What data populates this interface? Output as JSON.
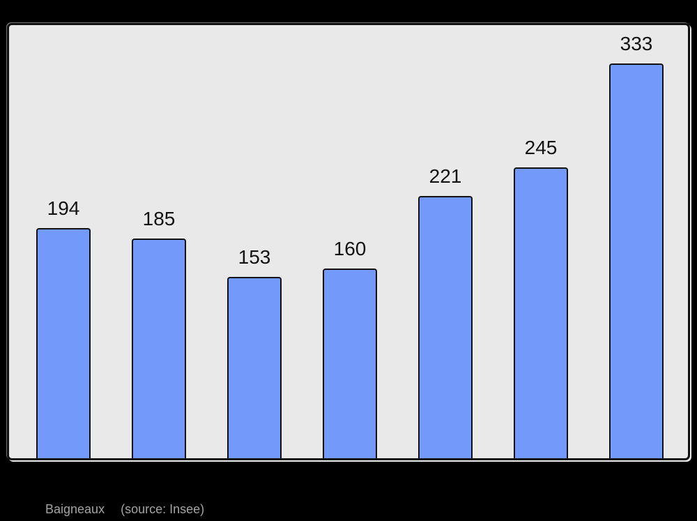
{
  "chart_data": {
    "type": "bar",
    "values": [
      194,
      185,
      153,
      160,
      221,
      245,
      333
    ],
    "value_labels": [
      "194",
      "185",
      "153",
      "160",
      "221",
      "245",
      "333"
    ],
    "title": "Baigneaux",
    "xlabel": "",
    "ylabel": "",
    "grid": false,
    "legend": false,
    "axes_ticks_visible": false,
    "bar_color": "#7399fb",
    "bar_border_color": "#111111",
    "panel_background": "#e9e9e9",
    "page_background": "#000000",
    "value_label_color": "#131313",
    "caption_color": "#a3a3a3"
  },
  "caption": {
    "title": "Baigneaux",
    "source": "(source: Insee)"
  }
}
